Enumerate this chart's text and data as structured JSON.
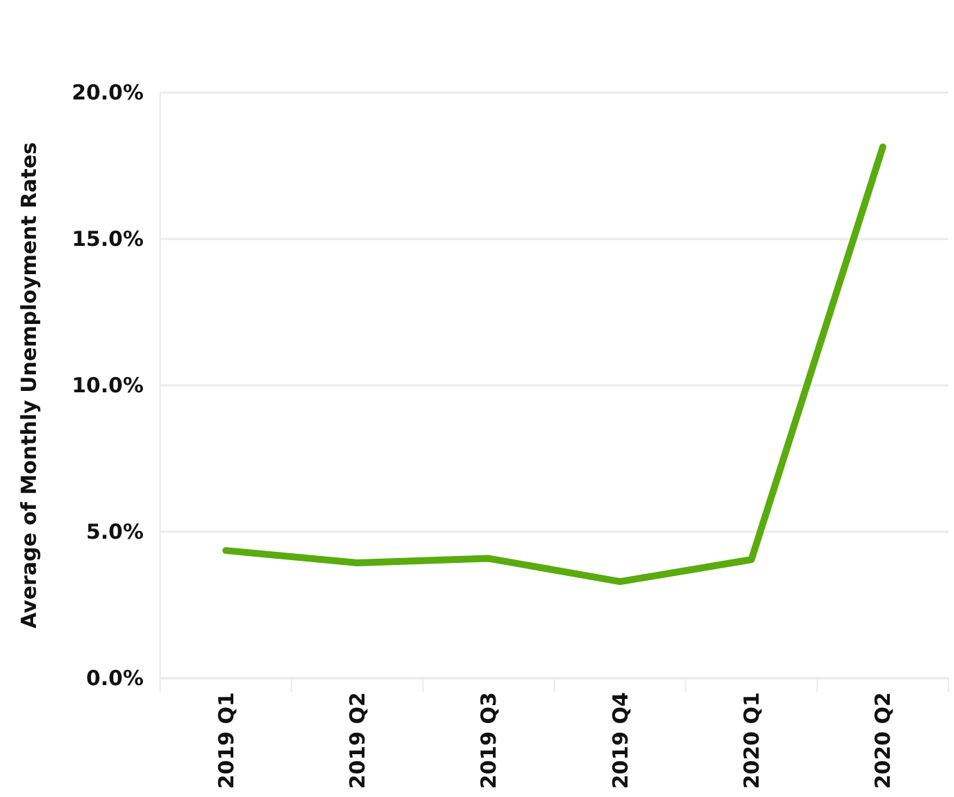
{
  "chart_data": {
    "type": "line",
    "ylabel": "Average of Monthly Unemployment Rates",
    "categories": [
      "2019 Q1",
      "2019 Q2",
      "2019 Q3",
      "2019 Q4",
      "2020 Q1",
      "2020 Q2"
    ],
    "series": [
      {
        "color": "#5aab0e",
        "values": [
          4.36,
          3.94,
          4.09,
          3.3,
          4.05,
          18.14
        ]
      }
    ],
    "ylim": [
      0,
      20
    ],
    "yticks": [
      {
        "value": 0,
        "label": "0.0%"
      },
      {
        "value": 5,
        "label": "5.0%"
      },
      {
        "value": 10,
        "label": "10.0%"
      },
      {
        "value": 15,
        "label": "15.0%"
      },
      {
        "value": 20,
        "label": "20.0%"
      }
    ],
    "grid": "y",
    "marker": "none",
    "line_style": "solid"
  }
}
